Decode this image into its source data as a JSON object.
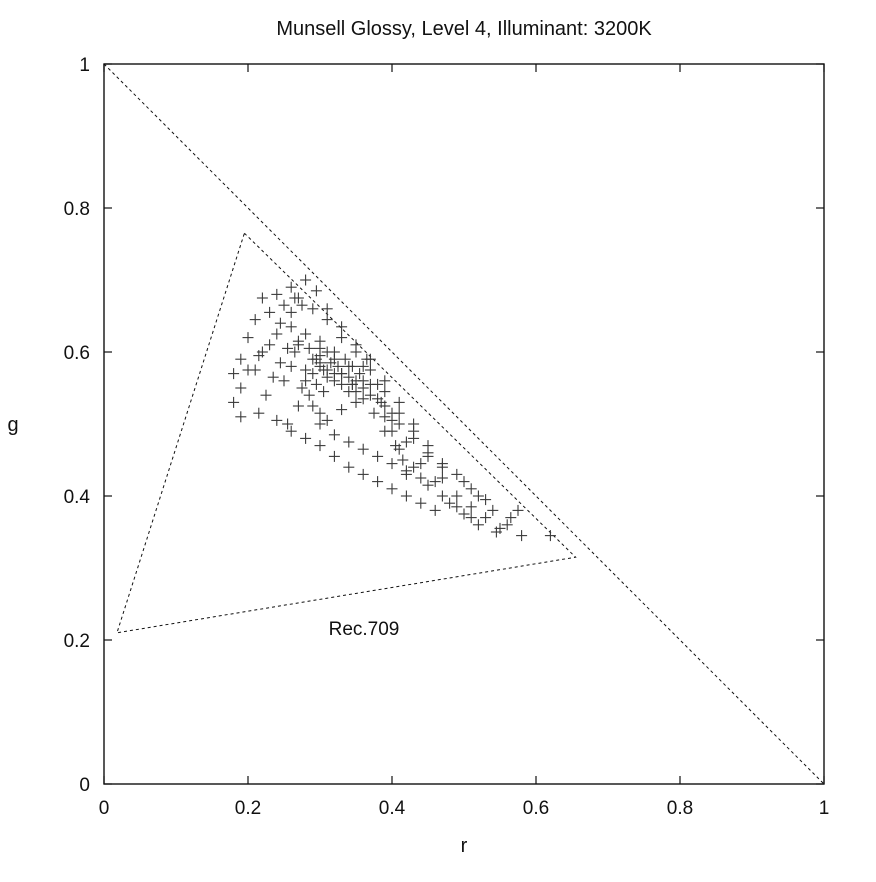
{
  "chart_data": {
    "type": "scatter",
    "title": "Munsell Glossy, Level 4, Illuminant: 3200K",
    "xlabel": "r",
    "ylabel": "g",
    "xlim": [
      0,
      1
    ],
    "ylim": [
      0,
      1
    ],
    "grid": false,
    "x_ticks": [
      "0",
      "0.2",
      "0.4",
      "0.6",
      "0.8",
      "1"
    ],
    "y_ticks": [
      "0",
      "0.2",
      "0.4",
      "0.6",
      "0.8",
      "1"
    ],
    "annotations": [
      {
        "text": "Rec.709"
      }
    ],
    "colors": {
      "points": "#3a3a3a",
      "lines": "#111111"
    },
    "marker": "plus",
    "reference_lines": {
      "diagonal": [
        [
          0,
          1
        ],
        [
          1,
          0
        ]
      ],
      "rec709_gamut": [
        [
          0.195,
          0.765
        ],
        [
          0.655,
          0.315
        ],
        [
          0.018,
          0.21
        ]
      ]
    },
    "series": [
      {
        "points": [
          [
            0.22,
            0.675
          ],
          [
            0.24,
            0.68
          ],
          [
            0.26,
            0.69
          ],
          [
            0.28,
            0.7
          ],
          [
            0.31,
            0.66
          ],
          [
            0.33,
            0.635
          ],
          [
            0.35,
            0.61
          ],
          [
            0.37,
            0.59
          ],
          [
            0.39,
            0.56
          ],
          [
            0.41,
            0.53
          ],
          [
            0.43,
            0.5
          ],
          [
            0.45,
            0.47
          ],
          [
            0.47,
            0.44
          ],
          [
            0.5,
            0.42
          ],
          [
            0.52,
            0.4
          ],
          [
            0.54,
            0.38
          ],
          [
            0.56,
            0.36
          ],
          [
            0.58,
            0.345
          ],
          [
            0.62,
            0.345
          ],
          [
            0.575,
            0.38
          ],
          [
            0.18,
            0.57
          ],
          [
            0.19,
            0.59
          ],
          [
            0.2,
            0.62
          ],
          [
            0.21,
            0.645
          ],
          [
            0.23,
            0.655
          ],
          [
            0.25,
            0.665
          ],
          [
            0.27,
            0.675
          ],
          [
            0.29,
            0.66
          ],
          [
            0.31,
            0.645
          ],
          [
            0.33,
            0.62
          ],
          [
            0.35,
            0.6
          ],
          [
            0.37,
            0.575
          ],
          [
            0.39,
            0.545
          ],
          [
            0.41,
            0.515
          ],
          [
            0.43,
            0.49
          ],
          [
            0.45,
            0.455
          ],
          [
            0.47,
            0.425
          ],
          [
            0.49,
            0.4
          ],
          [
            0.51,
            0.385
          ],
          [
            0.53,
            0.37
          ],
          [
            0.55,
            0.355
          ],
          [
            0.18,
            0.53
          ],
          [
            0.19,
            0.55
          ],
          [
            0.21,
            0.575
          ],
          [
            0.22,
            0.6
          ],
          [
            0.24,
            0.625
          ],
          [
            0.26,
            0.635
          ],
          [
            0.28,
            0.625
          ],
          [
            0.3,
            0.615
          ],
          [
            0.32,
            0.6
          ],
          [
            0.34,
            0.58
          ],
          [
            0.36,
            0.56
          ],
          [
            0.38,
            0.535
          ],
          [
            0.4,
            0.505
          ],
          [
            0.42,
            0.475
          ],
          [
            0.44,
            0.445
          ],
          [
            0.46,
            0.42
          ],
          [
            0.48,
            0.39
          ],
          [
            0.5,
            0.375
          ],
          [
            0.52,
            0.36
          ],
          [
            0.545,
            0.35
          ],
          [
            0.565,
            0.37
          ],
          [
            0.19,
            0.51
          ],
          [
            0.215,
            0.515
          ],
          [
            0.225,
            0.54
          ],
          [
            0.235,
            0.565
          ],
          [
            0.245,
            0.585
          ],
          [
            0.255,
            0.605
          ],
          [
            0.27,
            0.615
          ],
          [
            0.285,
            0.605
          ],
          [
            0.3,
            0.595
          ],
          [
            0.315,
            0.585
          ],
          [
            0.33,
            0.57
          ],
          [
            0.345,
            0.555
          ],
          [
            0.36,
            0.535
          ],
          [
            0.375,
            0.515
          ],
          [
            0.39,
            0.49
          ],
          [
            0.41,
            0.465
          ],
          [
            0.43,
            0.44
          ],
          [
            0.45,
            0.415
          ],
          [
            0.47,
            0.4
          ],
          [
            0.49,
            0.385
          ],
          [
            0.51,
            0.37
          ],
          [
            0.255,
            0.5
          ],
          [
            0.27,
            0.525
          ],
          [
            0.275,
            0.55
          ],
          [
            0.28,
            0.575
          ],
          [
            0.29,
            0.59
          ],
          [
            0.3,
            0.585
          ],
          [
            0.305,
            0.575
          ],
          [
            0.31,
            0.565
          ],
          [
            0.32,
            0.56
          ],
          [
            0.33,
            0.555
          ],
          [
            0.34,
            0.545
          ],
          [
            0.35,
            0.545
          ],
          [
            0.36,
            0.55
          ],
          [
            0.37,
            0.555
          ],
          [
            0.38,
            0.555
          ],
          [
            0.385,
            0.53
          ],
          [
            0.39,
            0.51
          ],
          [
            0.4,
            0.49
          ],
          [
            0.405,
            0.47
          ],
          [
            0.415,
            0.45
          ],
          [
            0.42,
            0.43
          ],
          [
            0.24,
            0.505
          ],
          [
            0.26,
            0.49
          ],
          [
            0.28,
            0.48
          ],
          [
            0.3,
            0.47
          ],
          [
            0.32,
            0.455
          ],
          [
            0.34,
            0.44
          ],
          [
            0.36,
            0.43
          ],
          [
            0.38,
            0.42
          ],
          [
            0.4,
            0.41
          ],
          [
            0.42,
            0.4
          ],
          [
            0.44,
            0.39
          ],
          [
            0.46,
            0.38
          ],
          [
            0.3,
            0.5
          ],
          [
            0.32,
            0.485
          ],
          [
            0.34,
            0.475
          ],
          [
            0.36,
            0.465
          ],
          [
            0.38,
            0.455
          ],
          [
            0.4,
            0.445
          ],
          [
            0.42,
            0.435
          ],
          [
            0.44,
            0.425
          ],
          [
            0.295,
            0.59
          ],
          [
            0.3,
            0.58
          ],
          [
            0.31,
            0.575
          ],
          [
            0.32,
            0.57
          ],
          [
            0.325,
            0.58
          ],
          [
            0.33,
            0.57
          ],
          [
            0.34,
            0.565
          ],
          [
            0.345,
            0.555
          ],
          [
            0.35,
            0.56
          ],
          [
            0.355,
            0.57
          ],
          [
            0.36,
            0.58
          ],
          [
            0.365,
            0.59
          ],
          [
            0.32,
            0.59
          ],
          [
            0.31,
            0.6
          ],
          [
            0.3,
            0.605
          ],
          [
            0.335,
            0.59
          ],
          [
            0.345,
            0.58
          ],
          [
            0.29,
            0.57
          ],
          [
            0.295,
            0.555
          ],
          [
            0.305,
            0.545
          ],
          [
            0.25,
            0.56
          ],
          [
            0.26,
            0.58
          ],
          [
            0.265,
            0.6
          ],
          [
            0.27,
            0.61
          ],
          [
            0.28,
            0.56
          ],
          [
            0.285,
            0.54
          ],
          [
            0.29,
            0.525
          ],
          [
            0.3,
            0.515
          ],
          [
            0.31,
            0.505
          ],
          [
            0.33,
            0.52
          ],
          [
            0.35,
            0.53
          ],
          [
            0.37,
            0.54
          ],
          [
            0.39,
            0.525
          ],
          [
            0.4,
            0.515
          ],
          [
            0.41,
            0.5
          ],
          [
            0.43,
            0.48
          ],
          [
            0.45,
            0.46
          ],
          [
            0.47,
            0.445
          ],
          [
            0.49,
            0.43
          ],
          [
            0.51,
            0.41
          ],
          [
            0.53,
            0.395
          ],
          [
            0.2,
            0.575
          ],
          [
            0.215,
            0.595
          ],
          [
            0.23,
            0.61
          ],
          [
            0.245,
            0.64
          ],
          [
            0.26,
            0.655
          ],
          [
            0.265,
            0.675
          ],
          [
            0.295,
            0.685
          ],
          [
            0.275,
            0.665
          ]
        ]
      }
    ]
  }
}
